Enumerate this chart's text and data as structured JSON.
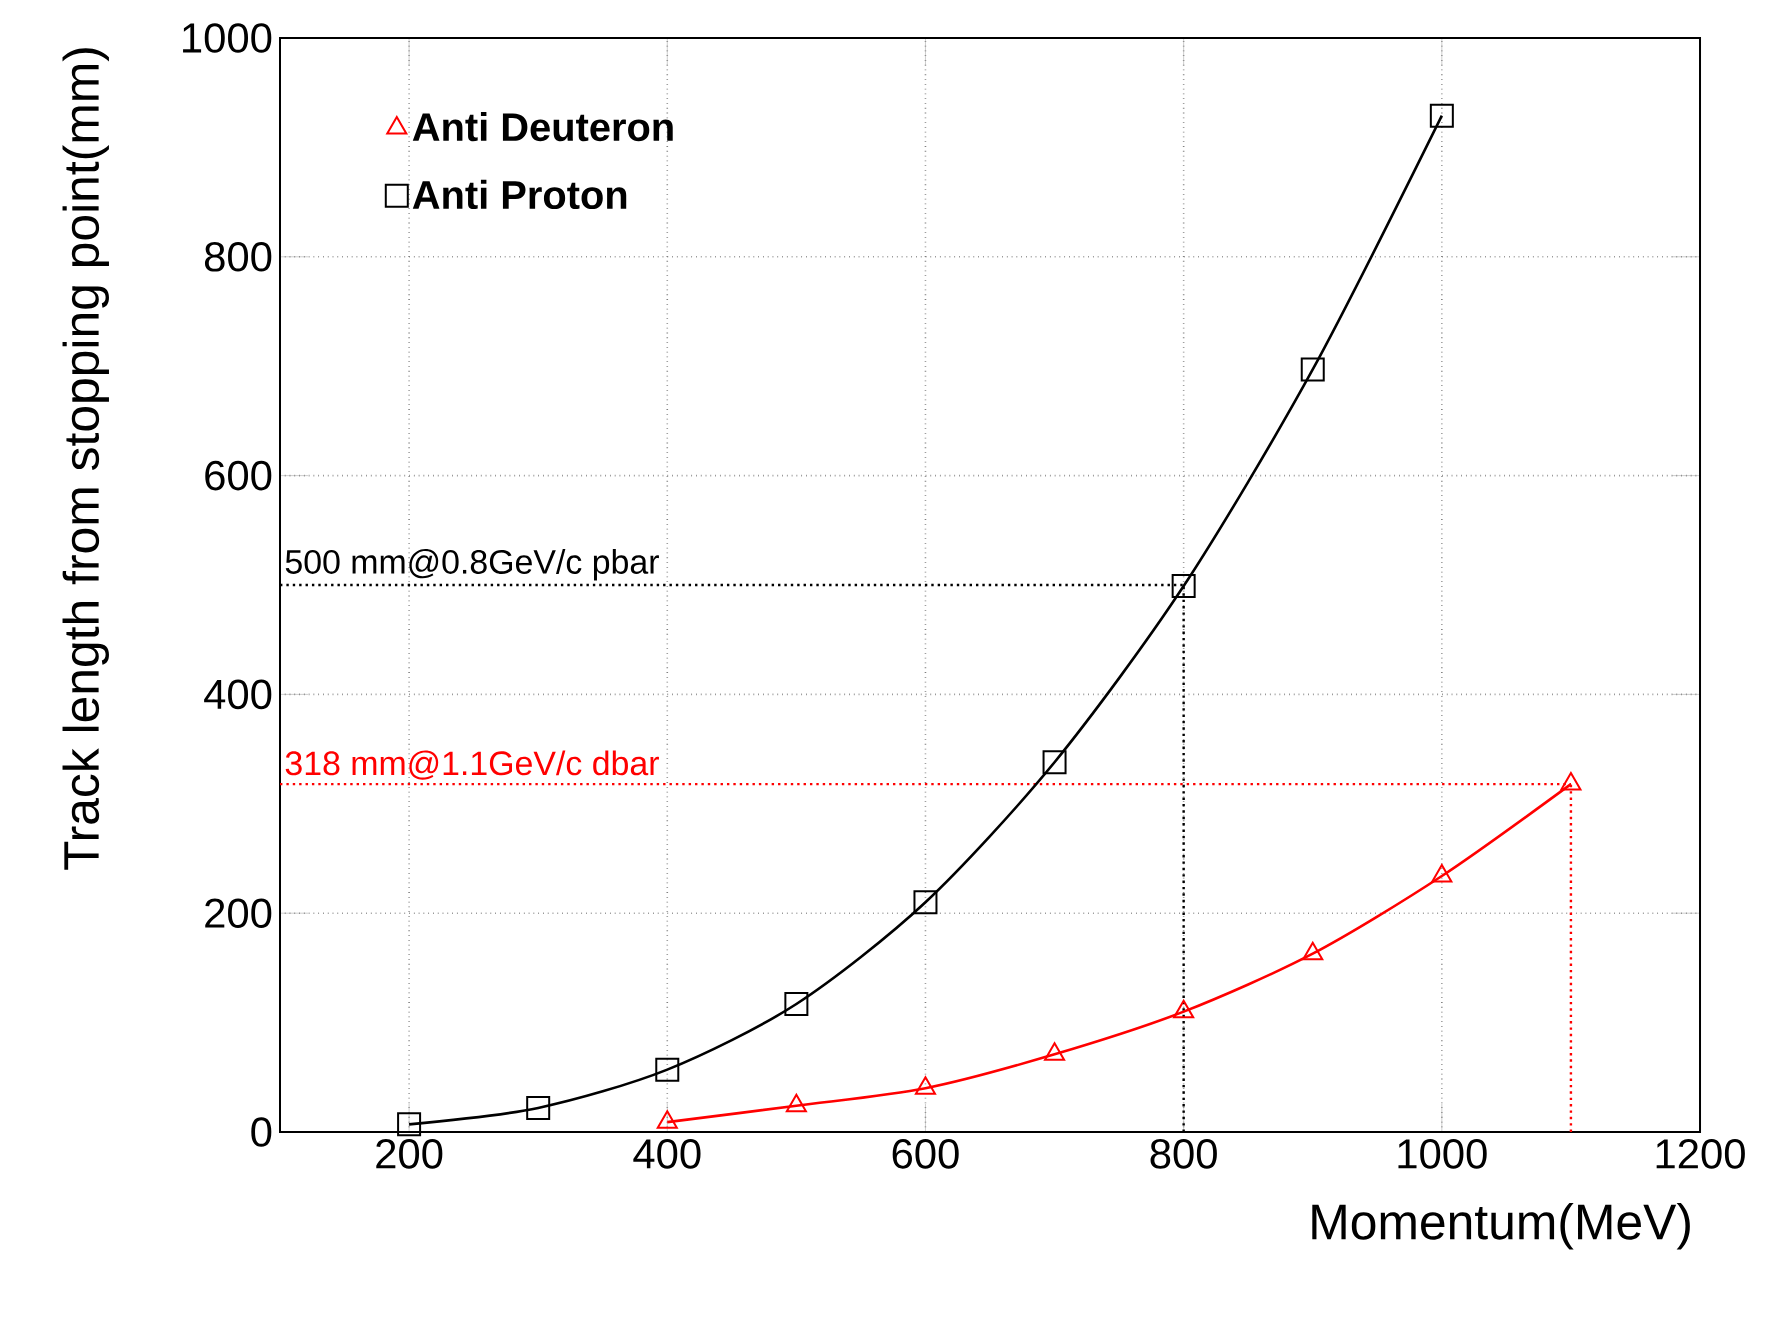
{
  "chart_data": {
    "type": "line",
    "xlabel": "Momentum(MeV)",
    "ylabel": "Track length from stopping point(mm)",
    "xlim": [
      100,
      1200
    ],
    "ylim": [
      0,
      1000
    ],
    "xticks": [
      200,
      400,
      600,
      800,
      1000,
      1200
    ],
    "yticks": [
      0,
      200,
      400,
      600,
      800,
      1000
    ],
    "grid": true,
    "legend": "top left",
    "line_style": "solid",
    "series": [
      {
        "name": "Anti Deuteron",
        "color": "#ff0000",
        "marker": "triangle",
        "x": [
          400,
          500,
          600,
          700,
          800,
          900,
          1000,
          1100
        ],
        "values": [
          9,
          24,
          40,
          71,
          110,
          163,
          234,
          318
        ]
      },
      {
        "name": "Anti Proton",
        "color": "#000000",
        "marker": "square",
        "x": [
          200,
          300,
          400,
          500,
          600,
          700,
          800,
          900,
          1000
        ],
        "values": [
          7,
          22,
          57,
          117,
          210,
          338,
          499,
          697,
          929
        ]
      }
    ],
    "ref_lines": [
      {
        "axis": "y",
        "value": 500,
        "label": "500 mm@0.8GeV/c pbar",
        "color": "#000000",
        "line_style": "dotted"
      },
      {
        "axis": "x",
        "value": 800,
        "color": "#000000",
        "line_style": "dotted"
      },
      {
        "axis": "y",
        "value": 318,
        "label": "318 mm@1.1GeV/c dbar",
        "color": "#ff0000",
        "line_style": "dotted"
      },
      {
        "axis": "x",
        "value": 1100,
        "color": "#ff0000",
        "line_style": "dotted"
      }
    ]
  }
}
